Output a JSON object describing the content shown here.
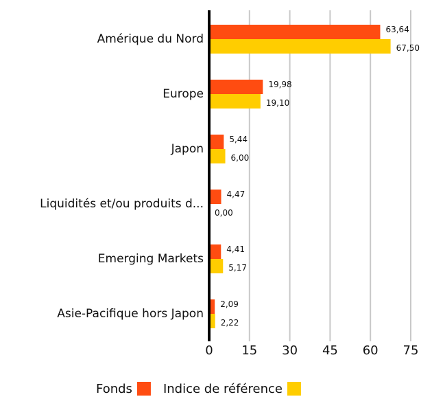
{
  "chart_data": {
    "type": "hbar",
    "categories": [
      "Amérique du Nord",
      "Europe",
      "Japon",
      "Liquidités et/ou produits d...",
      "Emerging Markets",
      "Asie-Pacifique hors Japon"
    ],
    "series": [
      {
        "name": "Fonds",
        "color": "#ff4c11",
        "values": [
          63.64,
          19.98,
          5.44,
          4.47,
          4.41,
          2.09
        ],
        "value_labels": [
          "63,64",
          "19,98",
          "5,44",
          "4,47",
          "4,41",
          "2,09"
        ]
      },
      {
        "name": "Indice de référence",
        "color": "#ffcd00",
        "values": [
          67.5,
          19.1,
          6.0,
          0.0,
          5.17,
          2.22
        ],
        "value_labels": [
          "67,50",
          "19,10",
          "6,00",
          "0,00",
          "5,17",
          "2,22"
        ]
      }
    ],
    "xlim": [
      0,
      75
    ],
    "xticks": [
      0,
      15,
      30,
      45,
      60,
      75
    ],
    "grid": true
  }
}
